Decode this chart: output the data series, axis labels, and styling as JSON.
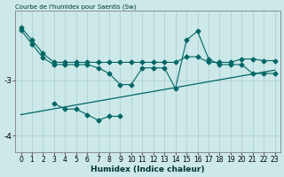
{
  "title": "Courbe de l'humidex pour Saentis (Sw)",
  "xlabel": "Humidex (Indice chaleur)",
  "bg_color": "#cce8e8",
  "grid_color": "#aacece",
  "line_color": "#006666",
  "x_values": [
    0,
    1,
    2,
    3,
    4,
    5,
    6,
    7,
    8,
    9,
    10,
    11,
    12,
    13,
    14,
    15,
    16,
    17,
    18,
    19,
    20,
    21,
    22,
    23
  ],
  "line1_y": [
    -2.05,
    -2.28,
    -2.52,
    -2.68,
    -2.68,
    -2.68,
    -2.68,
    -2.68,
    -2.68,
    -2.68,
    -2.68,
    -2.68,
    -2.68,
    -2.68,
    -2.68,
    -2.58,
    -2.58,
    -2.68,
    -2.68,
    -2.68,
    -2.62,
    -2.62,
    -2.65,
    -2.65
  ],
  "line2_x": [
    0,
    1,
    2,
    3,
    4,
    5,
    6,
    7,
    8,
    9,
    10,
    11,
    12,
    13,
    14,
    15,
    16,
    17,
    18,
    19,
    20,
    21,
    22,
    23
  ],
  "line2_y": [
    -2.1,
    -2.35,
    -2.6,
    -2.72,
    -2.72,
    -2.72,
    -2.72,
    -2.78,
    -2.88,
    -3.08,
    -3.08,
    -2.78,
    -2.78,
    -2.78,
    -3.15,
    -2.28,
    -2.12,
    -2.62,
    -2.72,
    -2.72,
    -2.72,
    -2.88,
    -2.88,
    -2.88
  ],
  "line3_x": [
    3,
    4,
    5,
    6,
    7,
    8,
    9
  ],
  "line3_y": [
    -3.42,
    -3.52,
    -3.52,
    -3.62,
    -3.72,
    -3.65,
    -3.65
  ],
  "trend_x": [
    0,
    23
  ],
  "trend_y": [
    -3.62,
    -2.82
  ],
  "ylim": [
    -4.3,
    -1.75
  ],
  "yticks": [
    -4.0,
    -3.0
  ],
  "xlim": [
    -0.5,
    23.5
  ],
  "markersize": 2.5,
  "title_fontsize": 5,
  "xlabel_fontsize": 6.5,
  "tick_fontsize": 5.5
}
